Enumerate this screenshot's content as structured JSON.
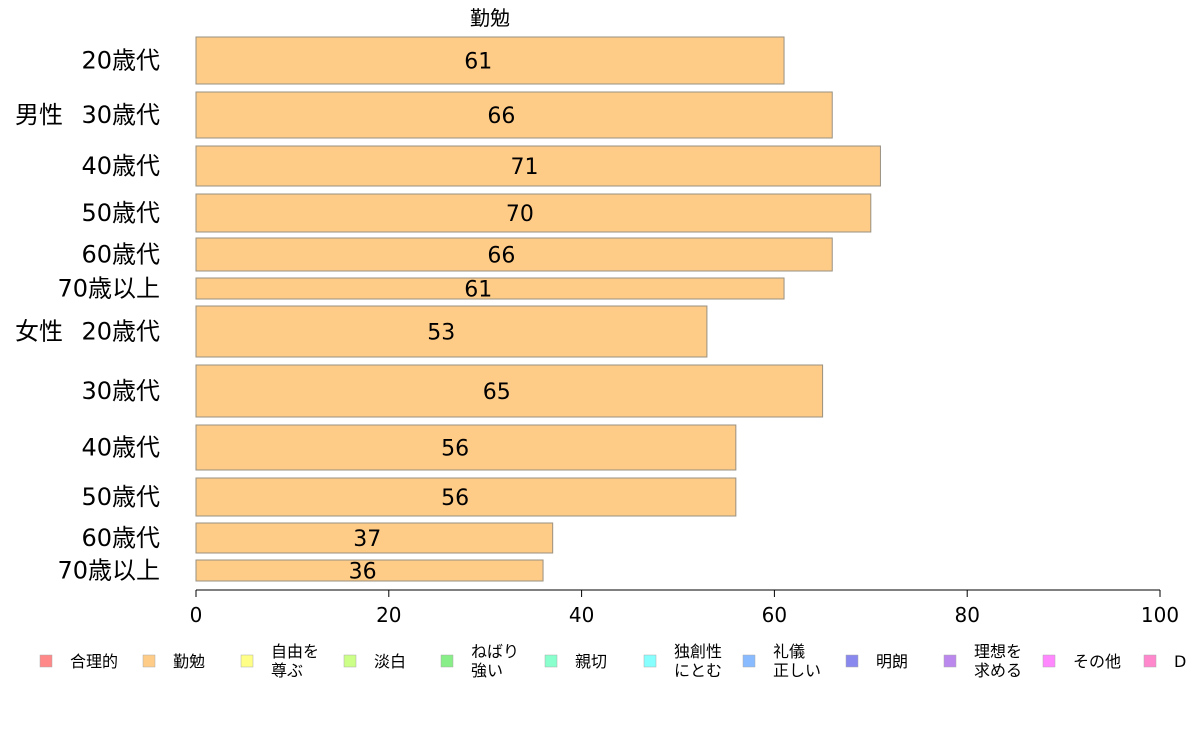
{
  "chart_data": {
    "type": "bar",
    "orientation": "horizontal",
    "title": "勤勉",
    "xlim": [
      0,
      100
    ],
    "x_ticks": [
      "0",
      "20",
      "40",
      "60",
      "80",
      "100"
    ],
    "group_labels": [
      "男性",
      "女性"
    ],
    "categories": [
      "20歳代",
      "30歳代",
      "40歳代",
      "50歳代",
      "60歳代",
      "70歳以上",
      "20歳代",
      "30歳代",
      "40歳代",
      "50歳代",
      "60歳代",
      "70歳以上"
    ],
    "values": [
      61,
      66,
      71,
      70,
      66,
      61,
      53,
      65,
      56,
      56,
      37,
      36
    ],
    "bar_color": "#FFCC88",
    "bar_edge_color": "#999080",
    "legend": [
      {
        "label": "合理的",
        "color": "#FF8888"
      },
      {
        "label": "勤勉",
        "color": "#FFCC88"
      },
      {
        "label": "自由を\n尊ぶ",
        "color": "#FFFF88"
      },
      {
        "label": "淡白",
        "color": "#CCFF88"
      },
      {
        "label": "ねばり\n強い",
        "color": "#88EE88"
      },
      {
        "label": "親切",
        "color": "#88FFCC"
      },
      {
        "label": "独創性\nにとむ",
        "color": "#88FFFF"
      },
      {
        "label": "礼儀\n正しい",
        "color": "#88BBFF"
      },
      {
        "label": "明朗",
        "color": "#8888EE"
      },
      {
        "label": "理想を\n求める",
        "color": "#BB88EE"
      },
      {
        "label": "その他",
        "color": "#FF88FF"
      },
      {
        "label": "D",
        "color": "#FF88CC"
      }
    ]
  }
}
